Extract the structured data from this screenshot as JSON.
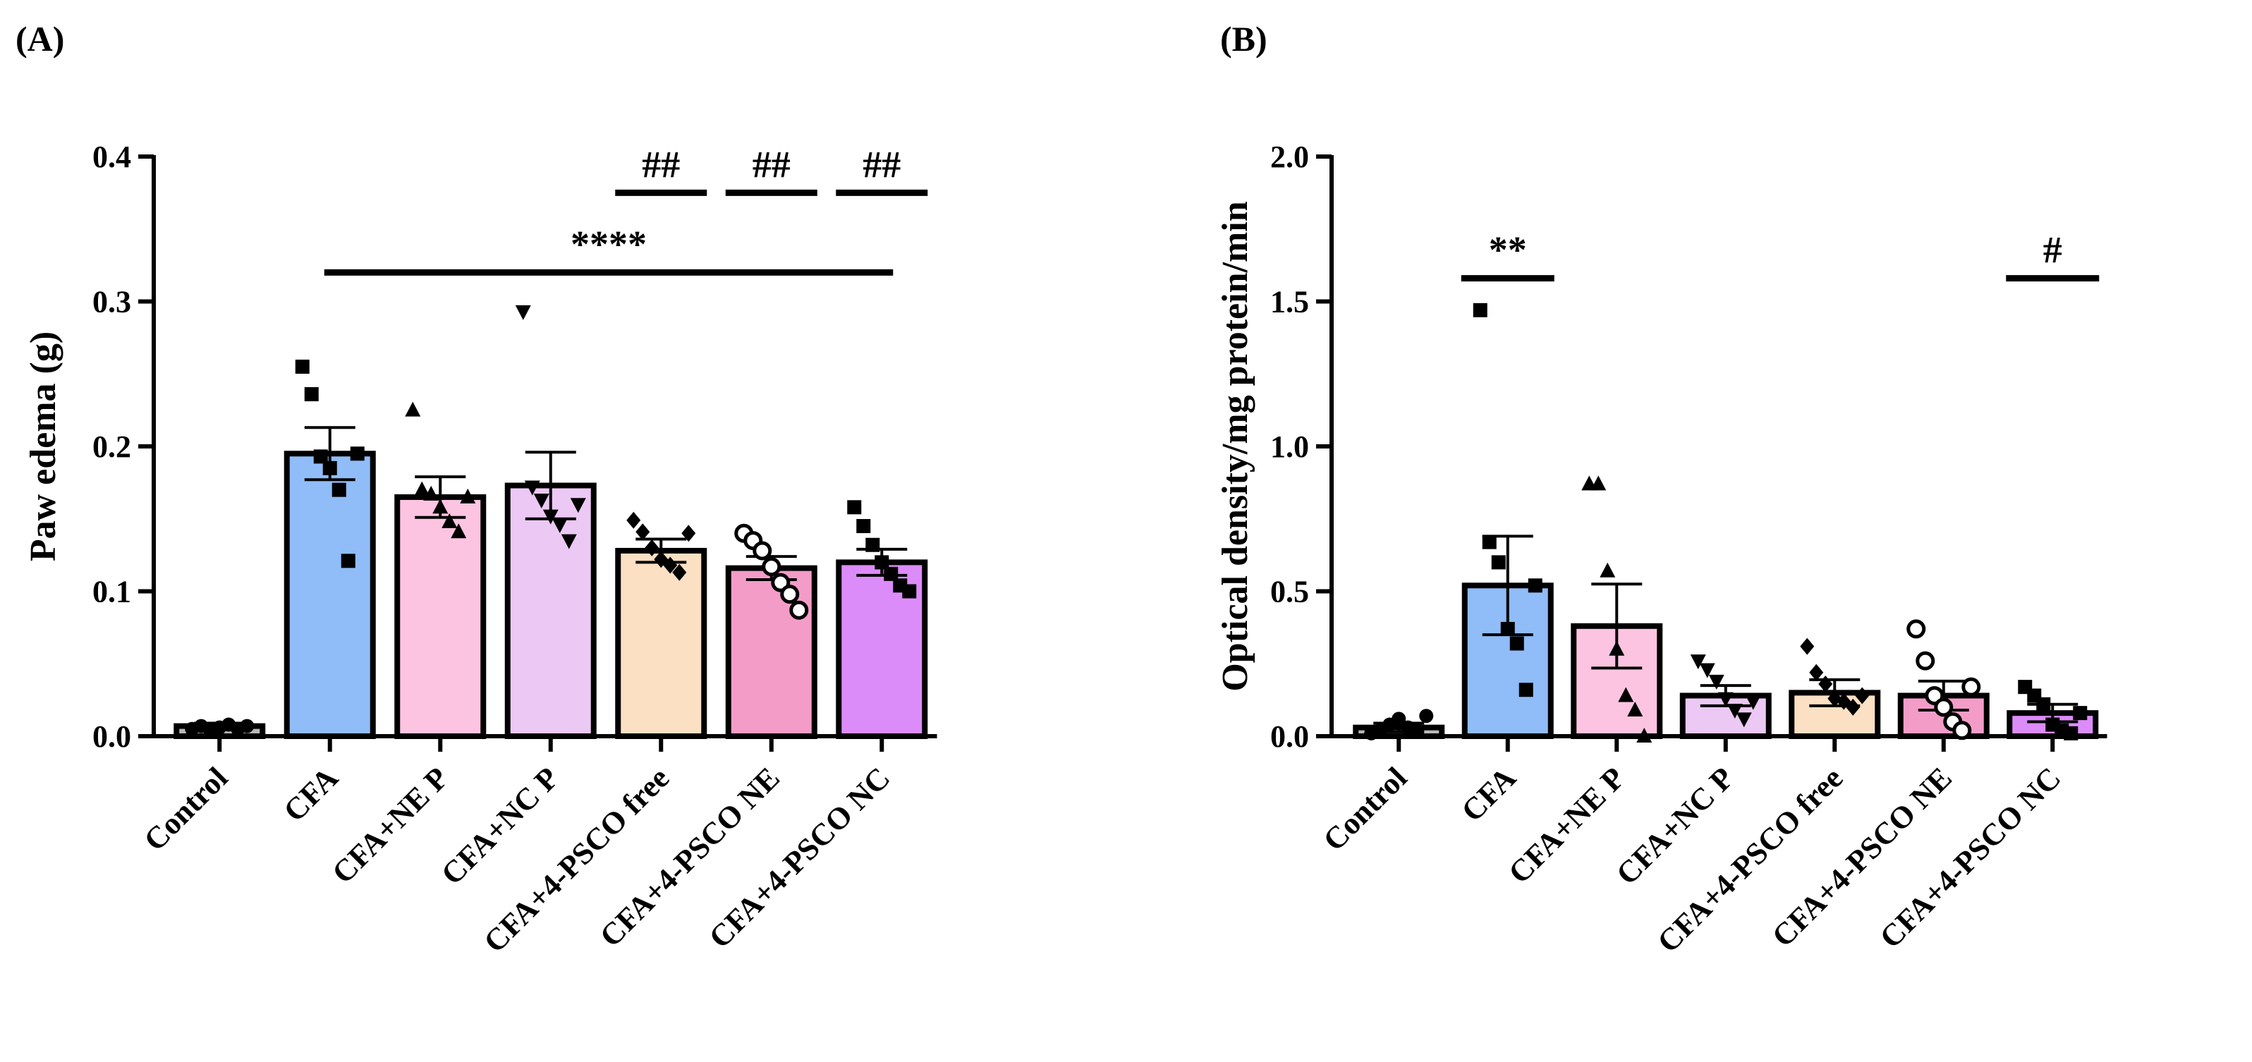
{
  "chart_data": [
    {
      "type": "bar",
      "panel_label": "(A)",
      "title": "",
      "xlabel": "",
      "ylabel": "Paw edema (g)",
      "ylim": [
        0,
        0.4
      ],
      "yticks": [
        "0.0",
        "0.1",
        "0.2",
        "0.3",
        "0.4"
      ],
      "ytick_values": [
        0,
        0.1,
        0.2,
        0.3,
        0.4
      ],
      "categories": [
        "Control",
        "CFA",
        "CFA+NE P",
        "CFA+NC P",
        "CFA+4-PSCO free",
        "CFA+4-PSCO NE",
        "CFA+4-PSCO NC"
      ],
      "colors": [
        "#b8b8b8",
        "#90bcf8",
        "#fcc4e0",
        "#ecc8f4",
        "#fce0c4",
        "#f49cc8",
        "#dc8cf8"
      ],
      "markers": [
        "circle",
        "square",
        "triangle",
        "triangle-down",
        "diamond",
        "circle-open",
        "square"
      ],
      "values": [
        0.007,
        0.195,
        0.165,
        0.173,
        0.128,
        0.116,
        0.12
      ],
      "sem": [
        0.002,
        0.018,
        0.014,
        0.023,
        0.008,
        0.008,
        0.009
      ],
      "points": [
        [
          0.005,
          0.007,
          0.004,
          0.006,
          0.008,
          0.005,
          0.007
        ],
        [
          0.255,
          0.236,
          0.193,
          0.185,
          0.17,
          0.121,
          0.195
        ],
        [
          0.225,
          0.17,
          0.167,
          0.158,
          0.148,
          0.141,
          0.165
        ],
        [
          0.293,
          0.172,
          0.163,
          0.152,
          0.146,
          0.135,
          0.16
        ],
        [
          0.149,
          0.141,
          0.13,
          0.122,
          0.118,
          0.113,
          0.14
        ],
        [
          0.14,
          0.135,
          0.128,
          0.117,
          0.106,
          0.098,
          0.087
        ],
        [
          0.158,
          0.145,
          0.132,
          0.12,
          0.112,
          0.104,
          0.1
        ]
      ],
      "significance": [
        {
          "label": "****",
          "from": 1,
          "to": 6,
          "y": 0.32
        },
        {
          "label": "##",
          "from": 4,
          "to": 4,
          "y": 0.375
        },
        {
          "label": "##",
          "from": 5,
          "to": 5,
          "y": 0.375
        },
        {
          "label": "##",
          "from": 6,
          "to": 6,
          "y": 0.375
        }
      ],
      "grid": false,
      "legend": "none"
    },
    {
      "type": "bar",
      "panel_label": "(B)",
      "title": "",
      "xlabel": "",
      "ylabel": "Optical density/mg protein/min",
      "ylim": [
        0,
        2.0
      ],
      "yticks": [
        "0.0",
        "0.5",
        "1.0",
        "1.5",
        "2.0"
      ],
      "ytick_values": [
        0,
        0.5,
        1.0,
        1.5,
        2.0
      ],
      "categories": [
        "Control",
        "CFA",
        "CFA+NE P",
        "CFA+NC P",
        "CFA+4-PSCO free",
        "CFA+4-PSCO NE",
        "CFA+4-PSCO NC"
      ],
      "colors": [
        "#b8b8b8",
        "#90bcf8",
        "#fcc4e0",
        "#ecc8f4",
        "#fce0c4",
        "#f49cc8",
        "#dc8cf8"
      ],
      "markers": [
        "circle",
        "square",
        "triangle",
        "triangle-down",
        "diamond",
        "circle-open",
        "square"
      ],
      "values": [
        0.03,
        0.52,
        0.38,
        0.14,
        0.15,
        0.14,
        0.08
      ],
      "sem": [
        0.015,
        0.17,
        0.145,
        0.035,
        0.045,
        0.05,
        0.03
      ],
      "points": [
        [
          0.01,
          0.02,
          0.04,
          0.06,
          0.03,
          0.02,
          0.07
        ],
        [
          1.47,
          0.67,
          0.6,
          0.37,
          0.32,
          0.16,
          0.52
        ],
        [
          0.87,
          0.87,
          0.57,
          0.3,
          0.14,
          0.09,
          0.0
        ],
        [
          0.26,
          0.23,
          0.19,
          0.13,
          0.09,
          0.06,
          0.12
        ],
        [
          0.31,
          0.22,
          0.18,
          0.13,
          0.12,
          0.1,
          0.14
        ],
        [
          0.37,
          0.26,
          0.14,
          0.1,
          0.05,
          0.02,
          0.17
        ],
        [
          0.17,
          0.14,
          0.11,
          0.04,
          0.02,
          0.01,
          0.08
        ]
      ],
      "significance": [
        {
          "label": "**",
          "from": 1,
          "to": 1,
          "y": 1.58
        },
        {
          "label": "#",
          "from": 6,
          "to": 6,
          "y": 1.58
        }
      ],
      "grid": false,
      "legend": "none"
    }
  ]
}
